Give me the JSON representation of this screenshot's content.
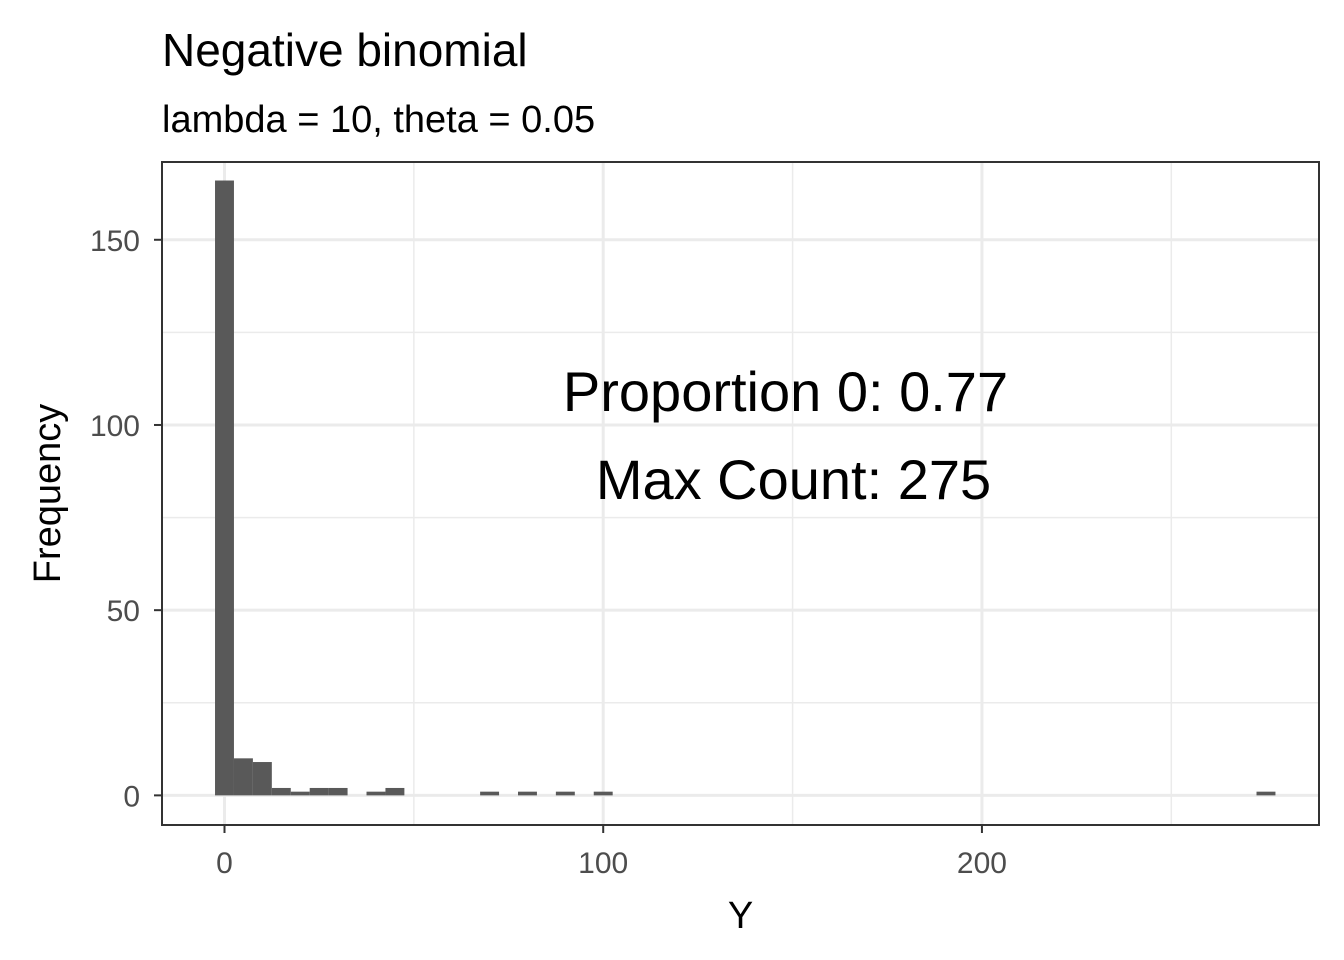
{
  "chart_data": {
    "type": "bar",
    "title": "Negative binomial",
    "subtitle": "lambda = 10, theta = 0.05",
    "xlabel": "Y",
    "ylabel": "Frequency",
    "xlim": [
      -16.5,
      289
    ],
    "ylim": [
      -8,
      171
    ],
    "x_ticks": [
      0,
      100,
      200
    ],
    "x_ticks_minor": [
      50,
      150,
      250
    ],
    "y_ticks": [
      0,
      50,
      100,
      150
    ],
    "y_ticks_minor": [
      25,
      75,
      125
    ],
    "bin_width": 5,
    "x_tick_labels": [
      "0",
      "100",
      "200"
    ],
    "y_tick_labels": [
      "0",
      "50",
      "100",
      "150"
    ],
    "grid": true,
    "bars": [
      {
        "x": 0,
        "count": 166
      },
      {
        "x": 5,
        "count": 10
      },
      {
        "x": 10,
        "count": 9
      },
      {
        "x": 15,
        "count": 2
      },
      {
        "x": 20,
        "count": 1
      },
      {
        "x": 25,
        "count": 2
      },
      {
        "x": 30,
        "count": 2
      },
      {
        "x": 35,
        "count": 0
      },
      {
        "x": 40,
        "count": 1
      },
      {
        "x": 45,
        "count": 2
      },
      {
        "x": 50,
        "count": 0
      },
      {
        "x": 55,
        "count": 0
      },
      {
        "x": 60,
        "count": 0
      },
      {
        "x": 65,
        "count": 0
      },
      {
        "x": 70,
        "count": 1
      },
      {
        "x": 75,
        "count": 0
      },
      {
        "x": 80,
        "count": 1
      },
      {
        "x": 85,
        "count": 0
      },
      {
        "x": 90,
        "count": 1
      },
      {
        "x": 95,
        "count": 0
      },
      {
        "x": 100,
        "count": 1
      },
      {
        "x": 275,
        "count": 1
      }
    ],
    "annotation": {
      "line1": "Proportion 0: 0.77",
      "line2": "Max Count: 275"
    },
    "colors": {
      "bar": "#595959",
      "grid": "#ebebeb",
      "panel_border": "#333333",
      "tick_text": "#4d4d4d"
    }
  }
}
